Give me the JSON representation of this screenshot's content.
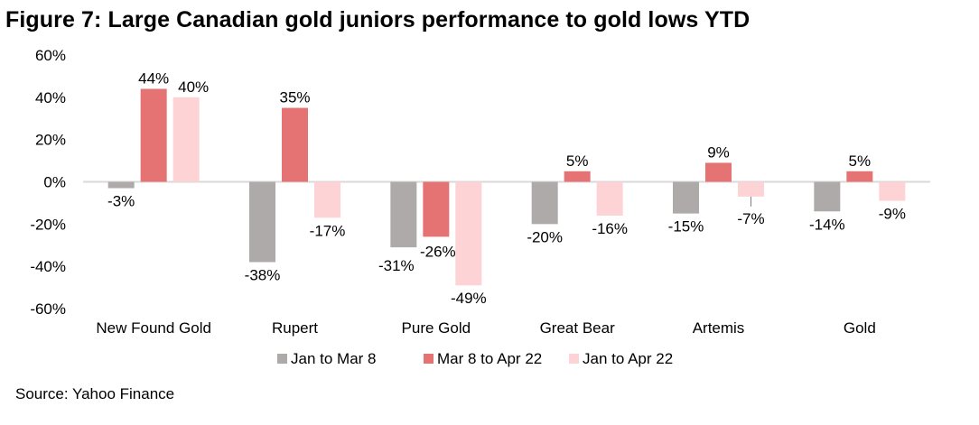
{
  "title": "Figure 7: Large Canadian gold juniors performance to gold lows YTD",
  "source": "Source: Yahoo Finance",
  "chart_data": {
    "type": "bar",
    "title": "Figure 7: Large Canadian gold juniors performance to gold lows YTD",
    "xlabel": "",
    "ylabel": "",
    "ylim": [
      -60,
      60
    ],
    "yticks": [
      60,
      40,
      20,
      0,
      -20,
      -40,
      -60
    ],
    "ytick_labels": [
      "60%",
      "40%",
      "20%",
      "0%",
      "-20%",
      "-40%",
      "-60%"
    ],
    "grid": false,
    "legend_position": "bottom",
    "categories": [
      "New Found Gold",
      "Rupert",
      "Pure Gold",
      "Great Bear",
      "Artemis",
      "Gold"
    ],
    "series": [
      {
        "name": "Jan to Mar 8",
        "color": "#aeaaaa",
        "values": [
          -3,
          -38,
          -31,
          -20,
          -15,
          -14
        ],
        "labels": [
          "-3%",
          "-38%",
          "-31%",
          "-20%",
          "-15%",
          "-14%"
        ]
      },
      {
        "name": "Mar 8 to Apr 22",
        "color": "#e57373",
        "values": [
          44,
          35,
          -26,
          5,
          9,
          5
        ],
        "labels": [
          "44%",
          "35%",
          "-26%",
          "5%",
          "9%",
          "5%"
        ]
      },
      {
        "name": "Jan to Apr 22",
        "color": "#fdd3d5",
        "values": [
          40,
          -17,
          -49,
          -16,
          -7,
          -9
        ],
        "labels": [
          "40%",
          "-17%",
          "-49%",
          "-16%",
          "-7%",
          "-9%"
        ]
      }
    ]
  }
}
